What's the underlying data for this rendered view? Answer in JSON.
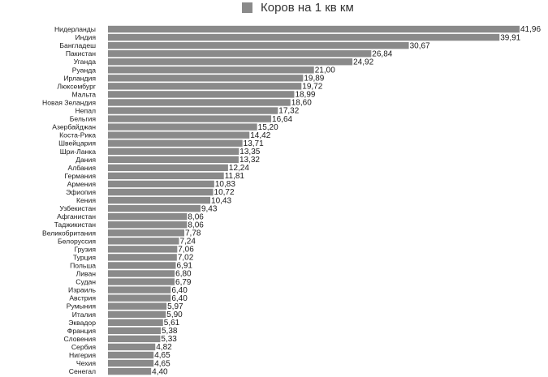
{
  "colors": {
    "bar": "#8a8a8a",
    "text": "#1a1a1a"
  },
  "legend": {
    "label": "Коров на 1 кв км"
  },
  "chart_data": {
    "type": "bar",
    "orientation": "horizontal",
    "legend_position": "top",
    "grid": false,
    "series": [
      {
        "name": "Коров на 1 кв км"
      }
    ],
    "categories": [
      "Нидерланды",
      "Индия",
      "Бангладеш",
      "Пакистан",
      "Уганда",
      "Руанда",
      "Ирландия",
      "Люксембург",
      "Мальта",
      "Новая Зеландия",
      "Непал",
      "Бельгия",
      "Азербайджан",
      "Коста-Рика",
      "Швейцария",
      "Шри-Ланка",
      "Дания",
      "Албания",
      "Германия",
      "Армения",
      "Эфиопия",
      "Кения",
      "Узбекистан",
      "Афганистан",
      "Таджикистан",
      "Великобритания",
      "Белоруссия",
      "Грузия",
      "Турция",
      "Польша",
      "Ливан",
      "Судан",
      "Израиль",
      "Австрия",
      "Румыния",
      "Италия",
      "Эквадор",
      "Франция",
      "Словения",
      "Сербия",
      "Нигерия",
      "Чехия",
      "Сенегал"
    ],
    "values": [
      41.96,
      39.91,
      30.67,
      26.84,
      24.92,
      21.0,
      19.89,
      19.72,
      18.99,
      18.6,
      17.32,
      16.64,
      15.2,
      14.42,
      13.71,
      13.35,
      13.32,
      12.24,
      11.81,
      10.83,
      10.72,
      10.43,
      9.43,
      8.06,
      8.06,
      7.78,
      7.24,
      7.06,
      7.02,
      6.91,
      6.8,
      6.79,
      6.4,
      6.4,
      5.97,
      5.9,
      5.61,
      5.38,
      5.33,
      4.82,
      4.65,
      4.65,
      4.4
    ],
    "value_labels": [
      "41,96",
      "39,91",
      "30,67",
      "26,84",
      "24,92",
      "21,00",
      "19,89",
      "19,72",
      "18,99",
      "18,60",
      "17,32",
      "16,64",
      "15,20",
      "14,42",
      "13,71",
      "13,35",
      "13,32",
      "12,24",
      "11,81",
      "10,83",
      "10,72",
      "10,43",
      "9,43",
      "8,06",
      "8,06",
      "7,78",
      "7,24",
      "7,06",
      "7,02",
      "6,91",
      "6,80",
      "6,79",
      "6,40",
      "6,40",
      "5,97",
      "5,90",
      "5,61",
      "5,38",
      "5,33",
      "4,82",
      "4,65",
      "4,65",
      "4,40"
    ],
    "xlim": [
      0,
      43
    ]
  }
}
